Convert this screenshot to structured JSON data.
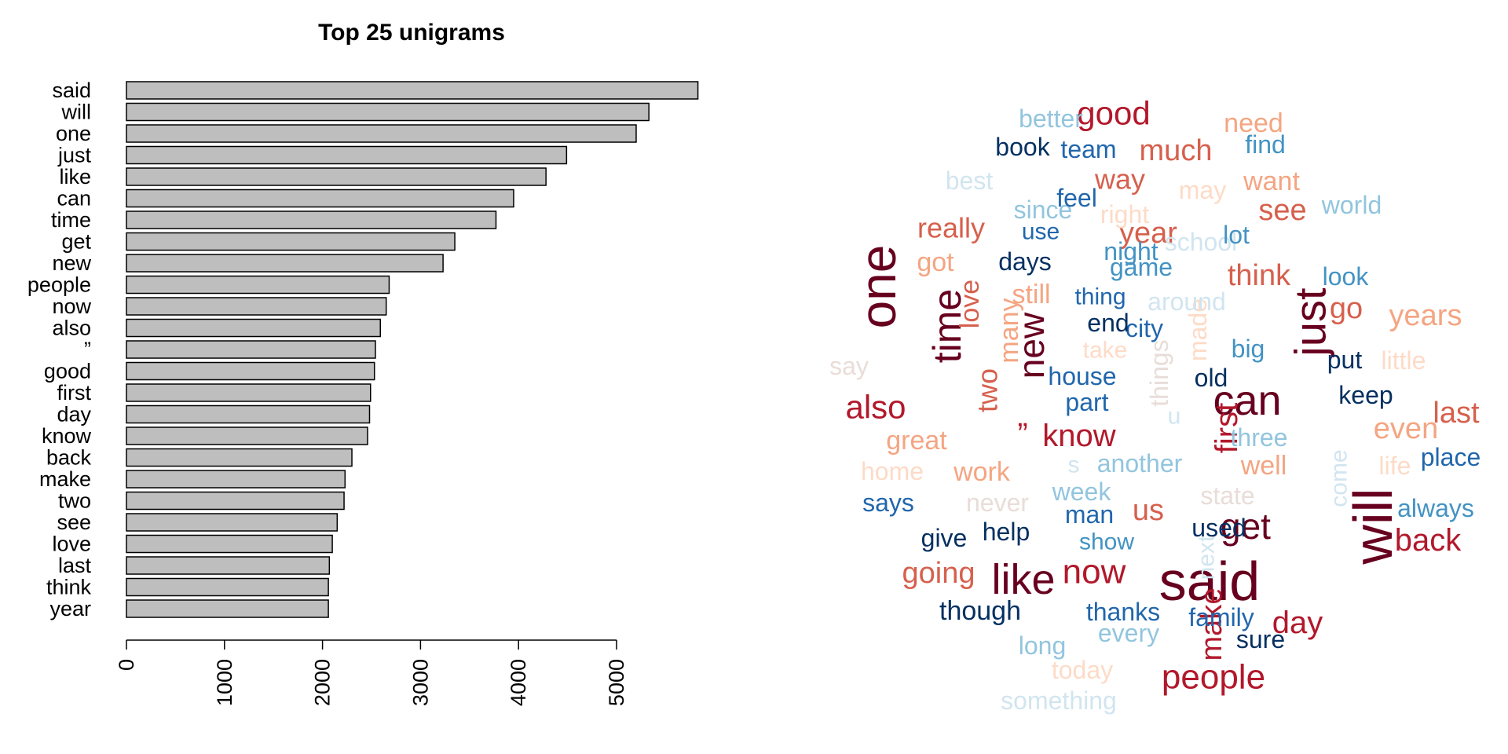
{
  "chart_data": [
    {
      "type": "bar",
      "orientation": "horizontal",
      "title": "Top 25 unigrams",
      "xlabel": "",
      "ylabel": "",
      "categories": [
        "said",
        "will",
        "one",
        "just",
        "like",
        "can",
        "time",
        "get",
        "new",
        "people",
        "now",
        "also",
        "”",
        "good",
        "first",
        "day",
        "know",
        "back",
        "make",
        "two",
        "see",
        "love",
        "last",
        "think",
        "year"
      ],
      "values": [
        5830,
        5330,
        5200,
        4490,
        4280,
        3950,
        3770,
        3350,
        3230,
        2680,
        2650,
        2590,
        2540,
        2530,
        2490,
        2480,
        2460,
        2300,
        2230,
        2220,
        2150,
        2100,
        2070,
        2060,
        2060
      ],
      "xlim": [
        0,
        5900
      ],
      "ticks": [
        "0",
        "1000",
        "2000",
        "3000",
        "4000",
        "5000"
      ],
      "bar_color": "#bebebe",
      "grid": false
    },
    {
      "type": "wordcloud",
      "palette": {
        "dark_red": "#67001f",
        "red": "#b2182b",
        "orange": "#d6604d",
        "salmon": "#f4a582",
        "peach": "#fddbc7",
        "pale": "#e8ddd8",
        "pale_blue": "#d1e5f0",
        "light_blue": "#92c5de",
        "blue": "#4393c3",
        "mid_blue": "#2166ac",
        "navy": "#053061"
      },
      "words": [
        {
          "text": "said",
          "size": 70,
          "color": "#67001f",
          "rotate": 0
        },
        {
          "text": "will",
          "size": 70,
          "color": "#67001f",
          "rotate": -90
        },
        {
          "text": "one",
          "size": 64,
          "color": "#67001f",
          "rotate": -90
        },
        {
          "text": "just",
          "size": 56,
          "color": "#67001f",
          "rotate": -90
        },
        {
          "text": "like",
          "size": 54,
          "color": "#67001f",
          "rotate": 0
        },
        {
          "text": "can",
          "size": 54,
          "color": "#67001f",
          "rotate": 0
        },
        {
          "text": "time",
          "size": 50,
          "color": "#67001f",
          "rotate": -90
        },
        {
          "text": "get",
          "size": 46,
          "color": "#67001f",
          "rotate": 0
        },
        {
          "text": "new",
          "size": 46,
          "color": "#67001f",
          "rotate": -90
        },
        {
          "text": "people",
          "size": 44,
          "color": "#b2182b",
          "rotate": 0
        },
        {
          "text": "now",
          "size": 44,
          "color": "#b2182b",
          "rotate": 0
        },
        {
          "text": "also",
          "size": 42,
          "color": "#b2182b",
          "rotate": 0
        },
        {
          "text": "”",
          "size": 40,
          "color": "#b2182b",
          "rotate": 0
        },
        {
          "text": "good",
          "size": 42,
          "color": "#b2182b",
          "rotate": 0
        },
        {
          "text": "first",
          "size": 40,
          "color": "#b2182b",
          "rotate": -90
        },
        {
          "text": "know",
          "size": 40,
          "color": "#b2182b",
          "rotate": 0
        },
        {
          "text": "day",
          "size": 40,
          "color": "#b2182b",
          "rotate": 0
        },
        {
          "text": "back",
          "size": 40,
          "color": "#b2182b",
          "rotate": 0
        },
        {
          "text": "make",
          "size": 38,
          "color": "#b2182b",
          "rotate": -90
        },
        {
          "text": "two",
          "size": 36,
          "color": "#d6604d",
          "rotate": -90
        },
        {
          "text": "see",
          "size": 38,
          "color": "#d6604d",
          "rotate": 0
        },
        {
          "text": "love",
          "size": 34,
          "color": "#d6604d",
          "rotate": -90
        },
        {
          "text": "last",
          "size": 38,
          "color": "#d6604d",
          "rotate": 0
        },
        {
          "text": "think",
          "size": 38,
          "color": "#d6604d",
          "rotate": 0
        },
        {
          "text": "year",
          "size": 38,
          "color": "#d6604d",
          "rotate": 0
        },
        {
          "text": "much",
          "size": 38,
          "color": "#d6604d",
          "rotate": 0
        },
        {
          "text": "way",
          "size": 36,
          "color": "#d6604d",
          "rotate": 0
        },
        {
          "text": "really",
          "size": 36,
          "color": "#d6604d",
          "rotate": 0
        },
        {
          "text": "go",
          "size": 38,
          "color": "#d6604d",
          "rotate": 0
        },
        {
          "text": "years",
          "size": 38,
          "color": "#f4a582",
          "rotate": 0
        },
        {
          "text": "even",
          "size": 38,
          "color": "#f4a582",
          "rotate": 0
        },
        {
          "text": "us",
          "size": 38,
          "color": "#d6604d",
          "rotate": 0
        },
        {
          "text": "going",
          "size": 38,
          "color": "#d6604d",
          "rotate": 0
        },
        {
          "text": "need",
          "size": 34,
          "color": "#f4a582",
          "rotate": 0
        },
        {
          "text": "want",
          "size": 34,
          "color": "#f4a582",
          "rotate": 0
        },
        {
          "text": "got",
          "size": 34,
          "color": "#f4a582",
          "rotate": 0
        },
        {
          "text": "great",
          "size": 34,
          "color": "#f4a582",
          "rotate": 0
        },
        {
          "text": "work",
          "size": 34,
          "color": "#f4a582",
          "rotate": 0
        },
        {
          "text": "well",
          "size": 34,
          "color": "#f4a582",
          "rotate": 0
        },
        {
          "text": "still",
          "size": 34,
          "color": "#f4a582",
          "rotate": 0
        },
        {
          "text": "many",
          "size": 34,
          "color": "#f4a582",
          "rotate": -90
        },
        {
          "text": "little",
          "size": 32,
          "color": "#fddbc7",
          "rotate": 0
        },
        {
          "text": "made",
          "size": 32,
          "color": "#fddbc7",
          "rotate": -90
        },
        {
          "text": "home",
          "size": 32,
          "color": "#fddbc7",
          "rotate": 0
        },
        {
          "text": "life",
          "size": 32,
          "color": "#fddbc7",
          "rotate": 0
        },
        {
          "text": "today",
          "size": 32,
          "color": "#fddbc7",
          "rotate": 0
        },
        {
          "text": "right",
          "size": 32,
          "color": "#fddbc7",
          "rotate": 0
        },
        {
          "text": "may",
          "size": 32,
          "color": "#fddbc7",
          "rotate": 0
        },
        {
          "text": "take",
          "size": 30,
          "color": "#fddbc7",
          "rotate": 0
        },
        {
          "text": "say",
          "size": 32,
          "color": "#e8ddd8",
          "rotate": 0
        },
        {
          "text": "never",
          "size": 32,
          "color": "#e8ddd8",
          "rotate": 0
        },
        {
          "text": "state",
          "size": 32,
          "color": "#e8ddd8",
          "rotate": 0
        },
        {
          "text": "things",
          "size": 32,
          "color": "#e8ddd8",
          "rotate": -90
        },
        {
          "text": "around",
          "size": 32,
          "color": "#d1e5f0",
          "rotate": 0
        },
        {
          "text": "school",
          "size": 32,
          "color": "#d1e5f0",
          "rotate": 0
        },
        {
          "text": "best",
          "size": 32,
          "color": "#d1e5f0",
          "rotate": 0
        },
        {
          "text": "something",
          "size": 32,
          "color": "#d1e5f0",
          "rotate": 0
        },
        {
          "text": "u",
          "size": 30,
          "color": "#d1e5f0",
          "rotate": 0
        },
        {
          "text": "s",
          "size": 30,
          "color": "#d1e5f0",
          "rotate": 0
        },
        {
          "text": "come",
          "size": 30,
          "color": "#d1e5f0",
          "rotate": -90
        },
        {
          "text": "next",
          "size": 30,
          "color": "#d1e5f0",
          "rotate": -90
        },
        {
          "text": "better",
          "size": 32,
          "color": "#92c5de",
          "rotate": 0
        },
        {
          "text": "since",
          "size": 32,
          "color": "#92c5de",
          "rotate": 0
        },
        {
          "text": "week",
          "size": 32,
          "color": "#92c5de",
          "rotate": 0
        },
        {
          "text": "another",
          "size": 32,
          "color": "#92c5de",
          "rotate": 0
        },
        {
          "text": "three",
          "size": 32,
          "color": "#92c5de",
          "rotate": 0
        },
        {
          "text": "world",
          "size": 32,
          "color": "#92c5de",
          "rotate": 0
        },
        {
          "text": "long",
          "size": 32,
          "color": "#92c5de",
          "rotate": 0
        },
        {
          "text": "every",
          "size": 32,
          "color": "#92c5de",
          "rotate": 0
        },
        {
          "text": "look",
          "size": 32,
          "color": "#4393c3",
          "rotate": 0
        },
        {
          "text": "night",
          "size": 32,
          "color": "#4393c3",
          "rotate": 0
        },
        {
          "text": "game",
          "size": 32,
          "color": "#4393c3",
          "rotate": 0
        },
        {
          "text": "find",
          "size": 32,
          "color": "#4393c3",
          "rotate": 0
        },
        {
          "text": "big",
          "size": 32,
          "color": "#4393c3",
          "rotate": 0
        },
        {
          "text": "lot",
          "size": 32,
          "color": "#4393c3",
          "rotate": 0
        },
        {
          "text": "show",
          "size": 30,
          "color": "#4393c3",
          "rotate": 0
        },
        {
          "text": "always",
          "size": 32,
          "color": "#4393c3",
          "rotate": 0
        },
        {
          "text": "says",
          "size": 32,
          "color": "#2166ac",
          "rotate": 0
        },
        {
          "text": "city",
          "size": 32,
          "color": "#2166ac",
          "rotate": 0
        },
        {
          "text": "house",
          "size": 32,
          "color": "#2166ac",
          "rotate": 0
        },
        {
          "text": "team",
          "size": 32,
          "color": "#2166ac",
          "rotate": 0
        },
        {
          "text": "feel",
          "size": 32,
          "color": "#2166ac",
          "rotate": 0
        },
        {
          "text": "use",
          "size": 30,
          "color": "#2166ac",
          "rotate": 0
        },
        {
          "text": "thing",
          "size": 30,
          "color": "#2166ac",
          "rotate": 0
        },
        {
          "text": "part",
          "size": 32,
          "color": "#2166ac",
          "rotate": 0
        },
        {
          "text": "man",
          "size": 32,
          "color": "#2166ac",
          "rotate": 0
        },
        {
          "text": "thanks",
          "size": 32,
          "color": "#2166ac",
          "rotate": 0
        },
        {
          "text": "family",
          "size": 32,
          "color": "#2166ac",
          "rotate": 0
        },
        {
          "text": "place",
          "size": 32,
          "color": "#2166ac",
          "rotate": 0
        },
        {
          "text": "book",
          "size": 32,
          "color": "#053061",
          "rotate": 0
        },
        {
          "text": "days",
          "size": 32,
          "color": "#053061",
          "rotate": 0
        },
        {
          "text": "end",
          "size": 32,
          "color": "#053061",
          "rotate": 0
        },
        {
          "text": "old",
          "size": 32,
          "color": "#053061",
          "rotate": 0
        },
        {
          "text": "put",
          "size": 32,
          "color": "#053061",
          "rotate": 0
        },
        {
          "text": "keep",
          "size": 32,
          "color": "#053061",
          "rotate": 0
        },
        {
          "text": "help",
          "size": 32,
          "color": "#053061",
          "rotate": 0
        },
        {
          "text": "give",
          "size": 32,
          "color": "#053061",
          "rotate": 0
        },
        {
          "text": "used",
          "size": 32,
          "color": "#053061",
          "rotate": 0
        },
        {
          "text": "though",
          "size": 34,
          "color": "#053061",
          "rotate": 0
        },
        {
          "text": "sure",
          "size": 32,
          "color": "#053061",
          "rotate": 0
        }
      ]
    }
  ]
}
